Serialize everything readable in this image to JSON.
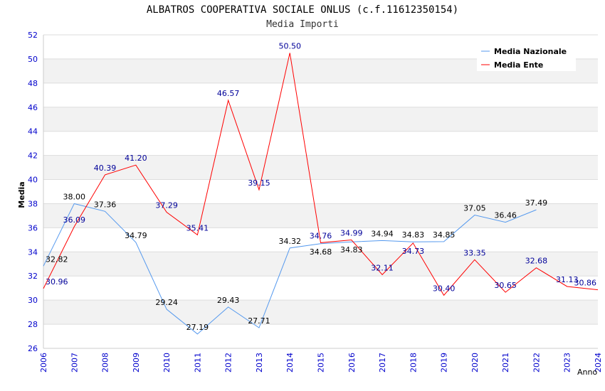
{
  "chart_data": {
    "type": "line",
    "title": "ALBATROS COOPERATIVA SOCIALE ONLUS (c.f.11612350154)",
    "subtitle": "Media Importi",
    "xlabel": "Anno",
    "ylabel": "Media",
    "ylim": [
      26,
      52
    ],
    "yticks": [
      "26",
      "28",
      "30",
      "32",
      "34",
      "36",
      "38",
      "40",
      "42",
      "44",
      "46",
      "48",
      "50",
      "52"
    ],
    "x": [
      "2006",
      "2007",
      "2008",
      "2009",
      "2010",
      "2011",
      "2012",
      "2013",
      "2014",
      "2015",
      "2016",
      "2017",
      "2018",
      "2019",
      "2020",
      "2021",
      "2022",
      "2023",
      "2024"
    ],
    "series": [
      {
        "name": "Media Nazionale",
        "color": "#5599ee",
        "label_color": "#000000",
        "values": [
          32.82,
          38.0,
          37.36,
          34.79,
          29.24,
          27.19,
          29.43,
          27.71,
          34.32,
          34.68,
          34.83,
          34.94,
          34.83,
          34.85,
          37.05,
          36.46,
          37.49,
          null,
          null
        ]
      },
      {
        "name": "Media Ente",
        "color": "#ff0000",
        "label_color": "#000099",
        "values": [
          30.96,
          36.09,
          40.39,
          41.2,
          37.29,
          35.41,
          46.57,
          39.15,
          50.5,
          34.76,
          34.99,
          32.11,
          34.73,
          30.4,
          33.35,
          30.65,
          32.68,
          31.13,
          30.86
        ]
      }
    ],
    "grid": true,
    "legend": "top-right"
  }
}
